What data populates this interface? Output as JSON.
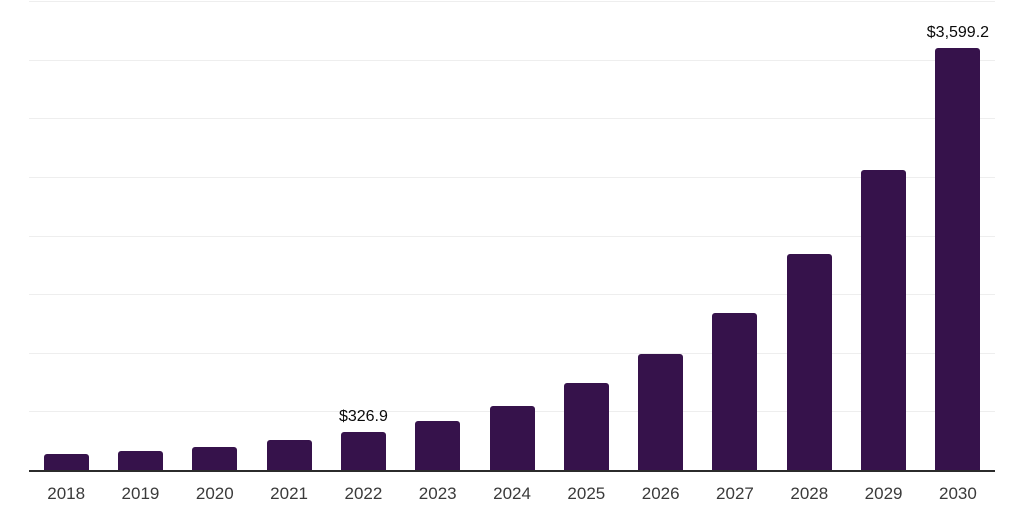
{
  "chart": {
    "background_color": "#ffffff",
    "bar_color": "#36124b",
    "gridline_color": "#eeeeee",
    "axis_line_color": "#2b2b2b",
    "year_label_color": "#3a3a3a",
    "value_label_color": "#0a0a0a"
  },
  "chart_data": {
    "type": "bar",
    "title": "",
    "xlabel": "",
    "ylabel": "",
    "categories": [
      "2018",
      "2019",
      "2020",
      "2021",
      "2022",
      "2023",
      "2024",
      "2025",
      "2026",
      "2027",
      "2028",
      "2029",
      "2030"
    ],
    "values": [
      135,
      160,
      195,
      255,
      326.9,
      420,
      550,
      740,
      990,
      1340,
      1845,
      2555,
      3599.2
    ],
    "value_labels": [
      "",
      "",
      "",
      "",
      "$326.9",
      "",
      "",
      "",
      "",
      "",
      "",
      "",
      "$3,599.2"
    ],
    "ylim": [
      0,
      4000
    ],
    "gridline_step": 500,
    "grid": "horizontal-only",
    "y_tick_labels_shown": false,
    "legend_position": "none"
  }
}
